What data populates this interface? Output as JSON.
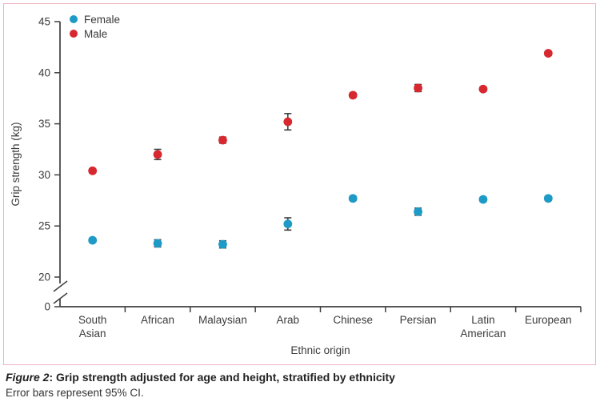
{
  "caption": {
    "label": "Figure 2",
    "separator": ": ",
    "title": "Grip strength adjusted for age and height, stratified by ethnicity",
    "note": "Error bars represent 95% CI."
  },
  "colors": {
    "female": "#1E9AC6",
    "male": "#D7282F",
    "axis": "#3F3F3F",
    "error_bar": "#404040",
    "panel_border": "#EFB3C0",
    "text": "#3B3B3B"
  },
  "chart_data": {
    "type": "scatter",
    "title": "",
    "xlabel": "Ethnic origin",
    "ylabel": "Grip strength (kg)",
    "categories": [
      "South Asian",
      "African",
      "Malaysian",
      "Arab",
      "Chinese",
      "Persian",
      "Latin American",
      "European"
    ],
    "x_tick_lines": [
      [
        "South",
        "Asian"
      ],
      [
        "African"
      ],
      [
        "Malaysian"
      ],
      [
        "Arab"
      ],
      [
        "Chinese"
      ],
      [
        "Persian"
      ],
      [
        "Latin",
        "American"
      ],
      [
        "European"
      ]
    ],
    "yticks": [
      0,
      20,
      25,
      30,
      35,
      40,
      45
    ],
    "ylim_display": [
      20,
      45
    ],
    "axis_break": true,
    "grid": false,
    "legend_position": "top-left",
    "series": [
      {
        "name": "Female",
        "color": "#1E9AC6",
        "values": [
          23.6,
          23.3,
          23.2,
          25.2,
          27.7,
          26.4,
          27.6,
          27.7
        ],
        "ci_halfwidth": [
          0.2,
          0.35,
          0.35,
          0.6,
          0.2,
          0.35,
          0.2,
          0.2
        ]
      },
      {
        "name": "Male",
        "color": "#D7282F",
        "values": [
          30.4,
          32.0,
          33.4,
          35.2,
          37.8,
          38.5,
          38.4,
          41.9
        ],
        "ci_halfwidth": [
          0.2,
          0.5,
          0.3,
          0.8,
          0.2,
          0.35,
          0.2,
          0.2
        ]
      }
    ]
  }
}
